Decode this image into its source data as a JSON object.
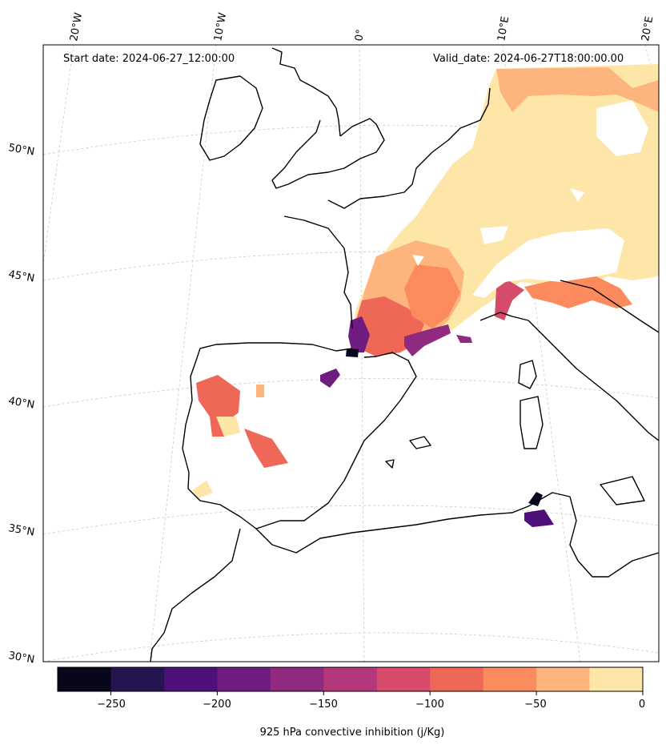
{
  "header": {
    "start_date": "Start date: 2024-06-27_12:00:00",
    "valid_date": "Valid_date: 2024-06-27T18:00:00.00"
  },
  "map": {
    "longitude_labels": [
      "20°W",
      "10°W",
      "0°",
      "10°E",
      "20°E"
    ],
    "latitude_labels": [
      "50°N",
      "45°N",
      "40°N",
      "35°N",
      "30°N"
    ]
  },
  "colorbar": {
    "title": "925 hPa convective inhibition (j/Kg)",
    "tick_labels": [
      "−250",
      "−200",
      "−150",
      "−100",
      "−50",
      "0"
    ],
    "levels": [
      -275,
      -250,
      -225,
      -200,
      -175,
      -150,
      -125,
      -100,
      -75,
      -50,
      -25,
      0
    ],
    "colors": [
      "#07061a",
      "#241450",
      "#4e0f78",
      "#6f1c80",
      "#902a80",
      "#b3377a",
      "#d64b69",
      "#ee6757",
      "#fb8b5d",
      "#fdb57d",
      "#fde6a7"
    ]
  },
  "colors": {
    "coast": "#000000",
    "grid": "#c8c8c8"
  }
}
